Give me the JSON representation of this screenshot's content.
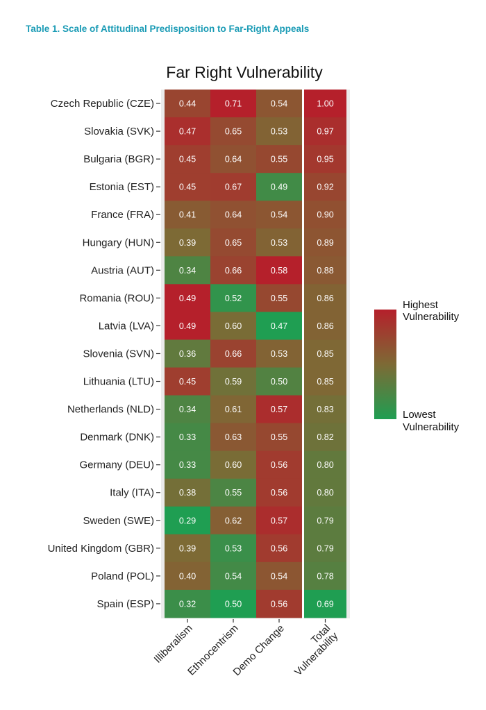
{
  "doc_title": "Table 1.  Scale of Attitudinal Predisposition to Far-Right Appeals",
  "colors": {
    "high": "#b5202b",
    "low": "#1f9e52",
    "title_accent": "#1a9bb5"
  },
  "chart_data": {
    "type": "heatmap",
    "title": "Far Right Vulnerability",
    "rows": [
      "Czech Republic (CZE)",
      "Slovakia (SVK)",
      "Bulgaria (BGR)",
      "Estonia (EST)",
      "France (FRA)",
      "Hungary (HUN)",
      "Austria (AUT)",
      "Romania (ROU)",
      "Latvia (LVA)",
      "Slovenia (SVN)",
      "Lithuania (LTU)",
      "Netherlands (NLD)",
      "Denmark (DNK)",
      "Germany (DEU)",
      "Italy (ITA)",
      "Sweden (SWE)",
      "United Kingdom (GBR)",
      "Poland (POL)",
      "Spain (ESP)"
    ],
    "columns": [
      "Illiberalism",
      "Ethnocentrism",
      "Demo Change"
    ],
    "total_column": [
      "Total",
      "Vulnerability"
    ],
    "values": [
      [
        0.44,
        0.71,
        0.54,
        1.0
      ],
      [
        0.47,
        0.65,
        0.53,
        0.97
      ],
      [
        0.45,
        0.64,
        0.55,
        0.95
      ],
      [
        0.45,
        0.67,
        0.49,
        0.92
      ],
      [
        0.41,
        0.64,
        0.54,
        0.9
      ],
      [
        0.39,
        0.65,
        0.53,
        0.89
      ],
      [
        0.34,
        0.66,
        0.58,
        0.88
      ],
      [
        0.49,
        0.52,
        0.55,
        0.86
      ],
      [
        0.49,
        0.6,
        0.47,
        0.86
      ],
      [
        0.36,
        0.66,
        0.53,
        0.85
      ],
      [
        0.45,
        0.59,
        0.5,
        0.85
      ],
      [
        0.34,
        0.61,
        0.57,
        0.83
      ],
      [
        0.33,
        0.63,
        0.55,
        0.82
      ],
      [
        0.33,
        0.6,
        0.56,
        0.8
      ],
      [
        0.38,
        0.55,
        0.56,
        0.8
      ],
      [
        0.29,
        0.62,
        0.57,
        0.79
      ],
      [
        0.39,
        0.53,
        0.56,
        0.79
      ],
      [
        0.4,
        0.54,
        0.54,
        0.78
      ],
      [
        0.32,
        0.5,
        0.56,
        0.69
      ]
    ],
    "legend": {
      "high_label": [
        "Highest",
        "Vulnerability"
      ],
      "low_label": [
        "Lowest",
        "Vulnerability"
      ],
      "placement": "right"
    }
  }
}
